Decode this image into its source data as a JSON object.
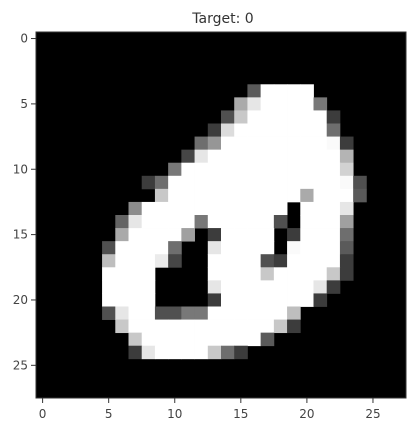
{
  "chart_data": {
    "type": "heatmap",
    "title": "Target: 0",
    "xlabel": "",
    "ylabel": "",
    "xlim": [
      -0.5,
      27.5
    ],
    "ylim": [
      27.5,
      -0.5
    ],
    "x_ticks": [
      0,
      5,
      10,
      15,
      20,
      25
    ],
    "y_ticks": [
      0,
      5,
      10,
      15,
      20,
      25
    ],
    "x_tick_labels": [
      "0",
      "5",
      "10",
      "15",
      "20",
      "25"
    ],
    "y_tick_labels": [
      "0",
      "5",
      "10",
      "15",
      "20",
      "25"
    ],
    "colormap": "gray",
    "vmin": 0,
    "vmax": 255,
    "grid": false,
    "rows": 28,
    "cols": 28,
    "pixels": [
      [
        0,
        0,
        0,
        0,
        0,
        0,
        0,
        0,
        0,
        0,
        0,
        0,
        0,
        0,
        0,
        0,
        0,
        0,
        0,
        0,
        0,
        0,
        0,
        0,
        0,
        0,
        0,
        0
      ],
      [
        0,
        0,
        0,
        0,
        0,
        0,
        0,
        0,
        0,
        0,
        0,
        0,
        0,
        0,
        0,
        0,
        0,
        0,
        0,
        0,
        0,
        0,
        0,
        0,
        0,
        0,
        0,
        0
      ],
      [
        0,
        0,
        0,
        0,
        0,
        0,
        0,
        0,
        0,
        0,
        0,
        0,
        0,
        0,
        0,
        0,
        0,
        0,
        0,
        0,
        0,
        0,
        0,
        0,
        0,
        0,
        0,
        0
      ],
      [
        0,
        0,
        0,
        0,
        0,
        0,
        0,
        0,
        0,
        0,
        0,
        0,
        0,
        0,
        0,
        0,
        0,
        0,
        0,
        0,
        0,
        0,
        0,
        0,
        0,
        0,
        0,
        0
      ],
      [
        0,
        0,
        0,
        0,
        0,
        0,
        0,
        0,
        0,
        0,
        0,
        0,
        0,
        0,
        0,
        0,
        90,
        255,
        255,
        255,
        255,
        0,
        0,
        0,
        0,
        0,
        0,
        0
      ],
      [
        0,
        0,
        0,
        0,
        0,
        0,
        0,
        0,
        0,
        0,
        0,
        0,
        0,
        0,
        0,
        170,
        230,
        255,
        255,
        255,
        255,
        120,
        0,
        0,
        0,
        0,
        0,
        0
      ],
      [
        0,
        0,
        0,
        0,
        0,
        0,
        0,
        0,
        0,
        0,
        0,
        0,
        0,
        0,
        80,
        200,
        255,
        255,
        255,
        255,
        255,
        255,
        60,
        0,
        0,
        0,
        0,
        0
      ],
      [
        0,
        0,
        0,
        0,
        0,
        0,
        0,
        0,
        0,
        0,
        0,
        0,
        0,
        60,
        220,
        255,
        255,
        255,
        255,
        255,
        255,
        255,
        110,
        0,
        0,
        0,
        0,
        0
      ],
      [
        0,
        0,
        0,
        0,
        0,
        0,
        0,
        0,
        0,
        0,
        0,
        0,
        110,
        150,
        255,
        255,
        255,
        255,
        255,
        255,
        255,
        255,
        250,
        60,
        0,
        0,
        0,
        0
      ],
      [
        0,
        0,
        0,
        0,
        0,
        0,
        0,
        0,
        0,
        0,
        0,
        70,
        230,
        255,
        255,
        255,
        255,
        255,
        255,
        255,
        255,
        255,
        255,
        180,
        0,
        0,
        0,
        0
      ],
      [
        0,
        0,
        0,
        0,
        0,
        0,
        0,
        0,
        0,
        0,
        120,
        255,
        255,
        255,
        255,
        255,
        255,
        255,
        255,
        255,
        255,
        255,
        255,
        210,
        0,
        0,
        0,
        0
      ],
      [
        0,
        0,
        0,
        0,
        0,
        0,
        0,
        0,
        60,
        110,
        255,
        255,
        255,
        255,
        255,
        255,
        255,
        255,
        255,
        255,
        255,
        255,
        255,
        250,
        80,
        0,
        0,
        0
      ],
      [
        0,
        0,
        0,
        0,
        0,
        0,
        0,
        0,
        0,
        200,
        255,
        255,
        255,
        255,
        255,
        255,
        255,
        255,
        255,
        255,
        170,
        255,
        255,
        255,
        90,
        0,
        0,
        0
      ],
      [
        0,
        0,
        0,
        0,
        0,
        0,
        0,
        140,
        255,
        255,
        255,
        255,
        255,
        255,
        255,
        255,
        255,
        255,
        255,
        0,
        255,
        255,
        255,
        230,
        0,
        0,
        0,
        0
      ],
      [
        0,
        0,
        0,
        0,
        0,
        0,
        100,
        230,
        255,
        255,
        255,
        255,
        120,
        255,
        255,
        255,
        255,
        255,
        80,
        0,
        255,
        255,
        255,
        160,
        0,
        0,
        0,
        0
      ],
      [
        0,
        0,
        0,
        0,
        0,
        0,
        170,
        255,
        255,
        255,
        255,
        160,
        0,
        60,
        255,
        255,
        255,
        255,
        0,
        60,
        255,
        255,
        255,
        110,
        0,
        0,
        0,
        0
      ],
      [
        0,
        0,
        0,
        0,
        0,
        80,
        255,
        255,
        255,
        255,
        110,
        0,
        0,
        230,
        255,
        255,
        255,
        255,
        0,
        250,
        255,
        255,
        255,
        90,
        0,
        0,
        0,
        0
      ],
      [
        0,
        0,
        0,
        0,
        0,
        190,
        255,
        255,
        255,
        235,
        70,
        0,
        0,
        255,
        255,
        255,
        255,
        80,
        60,
        255,
        255,
        255,
        255,
        60,
        0,
        0,
        0,
        0
      ],
      [
        0,
        0,
        0,
        0,
        0,
        255,
        255,
        255,
        255,
        0,
        0,
        0,
        0,
        255,
        255,
        255,
        255,
        200,
        255,
        255,
        255,
        255,
        200,
        60,
        0,
        0,
        0,
        0
      ],
      [
        0,
        0,
        0,
        0,
        0,
        255,
        255,
        255,
        255,
        0,
        0,
        0,
        0,
        230,
        255,
        255,
        255,
        255,
        255,
        255,
        255,
        230,
        60,
        0,
        0,
        0,
        0,
        0
      ],
      [
        0,
        0,
        0,
        0,
        0,
        255,
        255,
        255,
        255,
        0,
        0,
        0,
        0,
        60,
        255,
        255,
        255,
        255,
        255,
        255,
        255,
        60,
        0,
        0,
        0,
        0,
        0,
        0
      ],
      [
        0,
        0,
        0,
        0,
        0,
        80,
        230,
        255,
        255,
        80,
        80,
        120,
        120,
        255,
        255,
        255,
        255,
        255,
        255,
        190,
        0,
        0,
        0,
        0,
        0,
        0,
        0,
        0
      ],
      [
        0,
        0,
        0,
        0,
        0,
        0,
        200,
        255,
        255,
        255,
        255,
        255,
        255,
        255,
        255,
        255,
        255,
        255,
        200,
        60,
        0,
        0,
        0,
        0,
        0,
        0,
        0,
        0
      ],
      [
        0,
        0,
        0,
        0,
        0,
        0,
        0,
        200,
        255,
        255,
        255,
        255,
        255,
        255,
        255,
        255,
        255,
        90,
        0,
        0,
        0,
        0,
        0,
        0,
        0,
        0,
        0,
        0
      ],
      [
        0,
        0,
        0,
        0,
        0,
        0,
        0,
        60,
        230,
        255,
        255,
        255,
        255,
        200,
        110,
        60,
        0,
        0,
        0,
        0,
        0,
        0,
        0,
        0,
        0,
        0,
        0,
        0
      ],
      [
        0,
        0,
        0,
        0,
        0,
        0,
        0,
        0,
        0,
        0,
        0,
        0,
        0,
        0,
        0,
        0,
        0,
        0,
        0,
        0,
        0,
        0,
        0,
        0,
        0,
        0,
        0,
        0
      ],
      [
        0,
        0,
        0,
        0,
        0,
        0,
        0,
        0,
        0,
        0,
        0,
        0,
        0,
        0,
        0,
        0,
        0,
        0,
        0,
        0,
        0,
        0,
        0,
        0,
        0,
        0,
        0,
        0
      ],
      [
        0,
        0,
        0,
        0,
        0,
        0,
        0,
        0,
        0,
        0,
        0,
        0,
        0,
        0,
        0,
        0,
        0,
        0,
        0,
        0,
        0,
        0,
        0,
        0,
        0,
        0,
        0,
        0
      ]
    ]
  }
}
